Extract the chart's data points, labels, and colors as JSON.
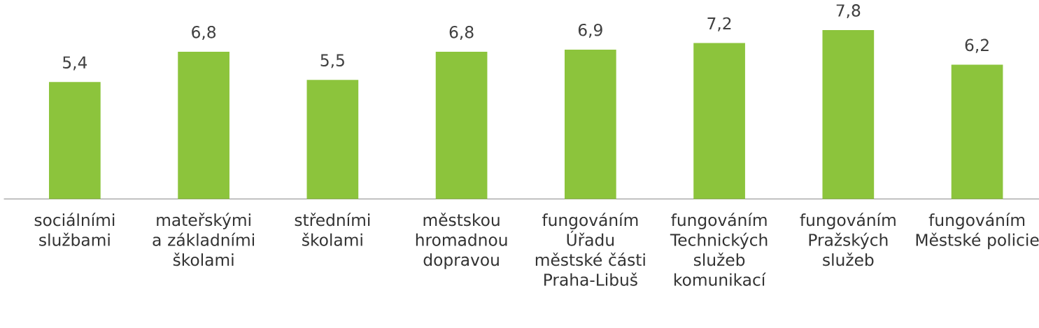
{
  "chart_data": {
    "type": "bar",
    "categories": [
      "sociálními službami",
      "mateřskými a základními školami",
      "středními školami",
      "městskou hromadnou dopravou",
      "fungováním Úřadu městské části Praha-Libuš",
      "fungováním Technických služeb komunikací",
      "fungováním Pražských služeb",
      "fungováním Městské policie"
    ],
    "values": [
      5.4,
      6.8,
      5.5,
      6.8,
      6.9,
      7.2,
      7.8,
      6.2
    ],
    "value_labels": [
      "5,4",
      "6,8",
      "5,5",
      "6,8",
      "6,9",
      "7,2",
      "7,8",
      "6,2"
    ],
    "color": "#8cc43c"
  }
}
